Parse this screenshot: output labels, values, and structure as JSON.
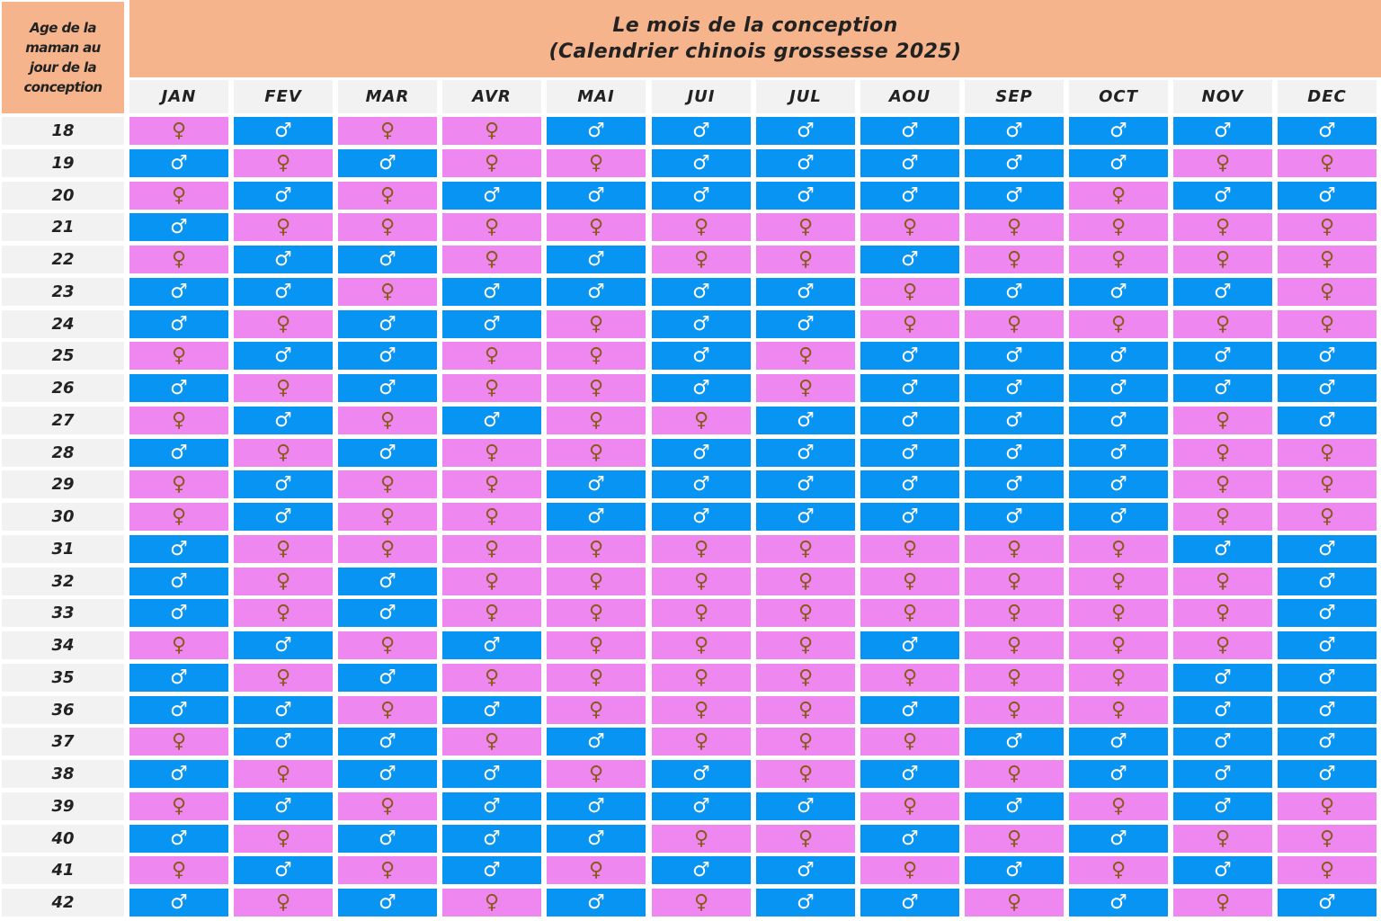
{
  "header": {
    "corner_label": "Age de la\nmaman au\njour de la\nconception",
    "title_line1": "Le mois de la conception",
    "title_line2": "(Calendrier chinois grossesse 2025)"
  },
  "legend_symbols": {
    "boy": "♂",
    "girl": "♀"
  },
  "colors": {
    "boy": "#0894f2",
    "girl": "#ee88f0",
    "header": "#f5b48c",
    "label_bg": "#f2f2f2"
  },
  "months": [
    "JAN",
    "FEV",
    "MAR",
    "AVR",
    "MAI",
    "JUI",
    "JUL",
    "AOU",
    "SEP",
    "OCT",
    "NOV",
    "DEC"
  ],
  "rows": [
    {
      "age": "18",
      "cells": [
        "F",
        "M",
        "F",
        "F",
        "M",
        "M",
        "M",
        "M",
        "M",
        "M",
        "M",
        "M"
      ]
    },
    {
      "age": "19",
      "cells": [
        "M",
        "F",
        "M",
        "F",
        "F",
        "M",
        "M",
        "M",
        "M",
        "M",
        "F",
        "F"
      ]
    },
    {
      "age": "20",
      "cells": [
        "F",
        "M",
        "F",
        "M",
        "M",
        "M",
        "M",
        "M",
        "M",
        "F",
        "M",
        "M"
      ]
    },
    {
      "age": "21",
      "cells": [
        "M",
        "F",
        "F",
        "F",
        "F",
        "F",
        "F",
        "F",
        "F",
        "F",
        "F",
        "F"
      ]
    },
    {
      "age": "22",
      "cells": [
        "F",
        "M",
        "M",
        "F",
        "M",
        "F",
        "F",
        "M",
        "F",
        "F",
        "F",
        "F"
      ]
    },
    {
      "age": "23",
      "cells": [
        "M",
        "M",
        "F",
        "M",
        "M",
        "M",
        "M",
        "F",
        "M",
        "M",
        "M",
        "F"
      ]
    },
    {
      "age": "24",
      "cells": [
        "M",
        "F",
        "M",
        "M",
        "F",
        "M",
        "M",
        "F",
        "F",
        "F",
        "F",
        "F"
      ]
    },
    {
      "age": "25",
      "cells": [
        "F",
        "M",
        "M",
        "F",
        "F",
        "M",
        "F",
        "M",
        "M",
        "M",
        "M",
        "M"
      ]
    },
    {
      "age": "26",
      "cells": [
        "M",
        "F",
        "M",
        "F",
        "F",
        "M",
        "F",
        "M",
        "M",
        "M",
        "M",
        "M"
      ]
    },
    {
      "age": "27",
      "cells": [
        "F",
        "M",
        "F",
        "M",
        "F",
        "F",
        "M",
        "M",
        "M",
        "M",
        "F",
        "M"
      ]
    },
    {
      "age": "28",
      "cells": [
        "M",
        "F",
        "M",
        "F",
        "F",
        "M",
        "M",
        "M",
        "M",
        "M",
        "F",
        "F"
      ]
    },
    {
      "age": "29",
      "cells": [
        "F",
        "M",
        "F",
        "F",
        "M",
        "M",
        "M",
        "M",
        "M",
        "M",
        "F",
        "F"
      ]
    },
    {
      "age": "30",
      "cells": [
        "F",
        "M",
        "F",
        "F",
        "M",
        "M",
        "M",
        "M",
        "M",
        "M",
        "F",
        "F"
      ]
    },
    {
      "age": "31",
      "cells": [
        "M",
        "F",
        "F",
        "F",
        "F",
        "F",
        "F",
        "F",
        "F",
        "F",
        "M",
        "M"
      ]
    },
    {
      "age": "32",
      "cells": [
        "M",
        "F",
        "M",
        "F",
        "F",
        "F",
        "F",
        "F",
        "F",
        "F",
        "F",
        "M"
      ]
    },
    {
      "age": "33",
      "cells": [
        "M",
        "F",
        "M",
        "F",
        "F",
        "F",
        "F",
        "F",
        "F",
        "F",
        "F",
        "M"
      ]
    },
    {
      "age": "34",
      "cells": [
        "F",
        "M",
        "F",
        "M",
        "F",
        "F",
        "F",
        "M",
        "F",
        "F",
        "F",
        "M"
      ]
    },
    {
      "age": "35",
      "cells": [
        "M",
        "F",
        "M",
        "F",
        "F",
        "F",
        "F",
        "F",
        "F",
        "F",
        "M",
        "M"
      ]
    },
    {
      "age": "36",
      "cells": [
        "M",
        "M",
        "F",
        "M",
        "F",
        "F",
        "F",
        "M",
        "F",
        "F",
        "M",
        "M"
      ]
    },
    {
      "age": "37",
      "cells": [
        "F",
        "M",
        "M",
        "F",
        "M",
        "F",
        "F",
        "F",
        "M",
        "M",
        "M",
        "M"
      ]
    },
    {
      "age": "38",
      "cells": [
        "M",
        "F",
        "M",
        "M",
        "F",
        "M",
        "F",
        "M",
        "F",
        "M",
        "M",
        "M"
      ]
    },
    {
      "age": "39",
      "cells": [
        "F",
        "M",
        "F",
        "M",
        "M",
        "M",
        "M",
        "F",
        "M",
        "F",
        "M",
        "F"
      ]
    },
    {
      "age": "40",
      "cells": [
        "M",
        "F",
        "M",
        "M",
        "M",
        "F",
        "F",
        "M",
        "F",
        "M",
        "F",
        "F"
      ]
    },
    {
      "age": "41",
      "cells": [
        "F",
        "M",
        "F",
        "M",
        "F",
        "M",
        "M",
        "F",
        "M",
        "F",
        "M",
        "F"
      ]
    },
    {
      "age": "42",
      "cells": [
        "M",
        "F",
        "M",
        "F",
        "M",
        "F",
        "M",
        "M",
        "F",
        "M",
        "F",
        "M"
      ]
    }
  ]
}
